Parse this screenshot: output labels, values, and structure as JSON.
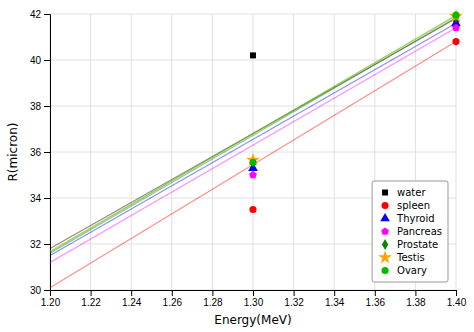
{
  "chart_data": {
    "type": "line",
    "xlabel": "Energy(MeV)",
    "ylabel": "R(micron)",
    "x": [
      1.2,
      1.3,
      1.4
    ],
    "xlim": [
      1.2,
      1.4
    ],
    "ylim": [
      30,
      42
    ],
    "xticks": [
      {
        "value": 1.2,
        "label": "1.20"
      },
      1.22,
      1.24,
      1.26,
      1.28,
      {
        "value": 1.3,
        "label": "1.30"
      },
      1.32,
      1.34,
      1.36,
      1.38,
      {
        "value": 1.4,
        "label": "1.40"
      }
    ],
    "yticks": [
      30,
      32,
      34,
      36,
      38,
      40,
      42
    ],
    "series": [
      {
        "name": "water",
        "color": "black",
        "marker": "square",
        "values": [
          31.8,
          40.2,
          41.8
        ]
      },
      {
        "name": "spleen",
        "color": "red",
        "marker": "circle",
        "values": [
          30.1,
          33.5,
          40.8
        ]
      },
      {
        "name": "Thyroid",
        "color": "blue",
        "marker": "triangle",
        "values": [
          31.5,
          35.3,
          41.6
        ]
      },
      {
        "name": "Pancreas",
        "color": "magenta",
        "marker": "pentagon",
        "values": [
          31.2,
          35.0,
          41.4
        ]
      },
      {
        "name": "Prostate",
        "color": "#008800",
        "marker": "diamond",
        "values": [
          31.6,
          35.55,
          41.85
        ]
      },
      {
        "name": "Testis",
        "color": "orange",
        "marker": "star",
        "values": [
          31.7,
          35.65,
          41.9
        ]
      },
      {
        "name": "Ovary",
        "color": "#00bb00",
        "marker": "circle",
        "values": [
          31.65,
          35.55,
          41.95
        ]
      }
    ],
    "legend": "lower right",
    "grid": true
  }
}
